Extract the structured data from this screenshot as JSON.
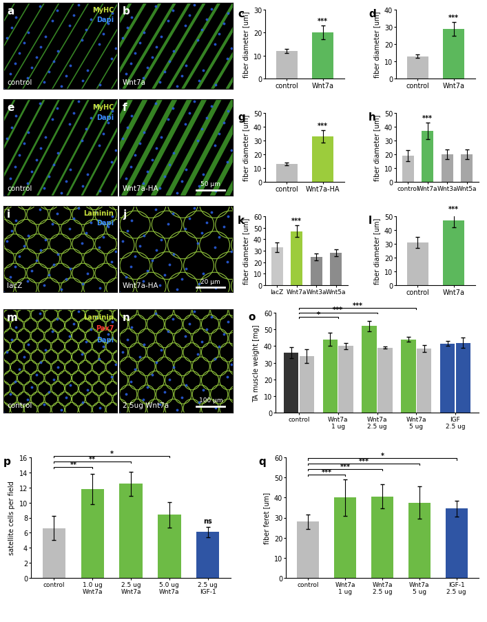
{
  "images": [
    {
      "panel": "a",
      "channels": [
        {
          "name": "MyHC",
          "color": "#c8e03c"
        },
        {
          "name": "Dapi",
          "color": "#3a8cff"
        }
      ],
      "label": "control"
    },
    {
      "panel": "b",
      "label": "Wnt7a"
    },
    {
      "panel": "e",
      "channels": [
        {
          "name": "MyHC",
          "color": "#c8e03c"
        },
        {
          "name": "Dapi",
          "color": "#3a8cff"
        }
      ],
      "label": "control"
    },
    {
      "panel": "f",
      "label": "Wnt7a-HA",
      "scale_bar": "50 μm"
    },
    {
      "panel": "i",
      "channels": [
        {
          "name": "Laminin",
          "color": "#c8e03c"
        },
        {
          "name": "Dapi",
          "color": "#3a8cff"
        }
      ],
      "label": "lacZ"
    },
    {
      "panel": "j",
      "label": "Wnt7a-HA",
      "scale_bar": "20 μm"
    },
    {
      "panel": "m",
      "channels": [
        {
          "name": "Laminin",
          "color": "#c8e03c"
        },
        {
          "name": "Pax7",
          "color": "#ff3b30"
        },
        {
          "name": "Dapi",
          "color": "#3a8cff"
        }
      ],
      "label": "control"
    },
    {
      "panel": "n",
      "label": "2.5ug Wnt7a",
      "scale_bar": "100 μm"
    }
  ],
  "chart_data": [
    {
      "panel": "c",
      "type": "bar",
      "y_label": "fiber diameter [um]",
      "categories": [
        "control",
        "Wnt7a"
      ],
      "values": [
        12,
        20
      ],
      "errors": [
        1,
        3
      ],
      "colors": [
        "#bdbdbd",
        "#5cb85c"
      ],
      "ylim": [
        0,
        30
      ],
      "yticks": [
        0,
        10,
        20,
        30
      ],
      "annotations": [
        null,
        "***"
      ]
    },
    {
      "panel": "d",
      "type": "bar",
      "y_label": "fiber diameter [um]",
      "categories": [
        "control",
        "Wnt7a"
      ],
      "values": [
        13,
        29
      ],
      "errors": [
        1,
        4
      ],
      "colors": [
        "#bdbdbd",
        "#5cb85c"
      ],
      "ylim": [
        0,
        40
      ],
      "yticks": [
        0,
        10,
        20,
        30,
        40
      ],
      "annotations": [
        null,
        "***"
      ]
    },
    {
      "panel": "g",
      "type": "bar",
      "y_label": "fiber diameter [um]",
      "categories": [
        "control",
        "Wnt7a-HA"
      ],
      "values": [
        13,
        33
      ],
      "errors": [
        1,
        4.5
      ],
      "colors": [
        "#bdbdbd",
        "#9ccc3c"
      ],
      "ylim": [
        0,
        50
      ],
      "yticks": [
        0,
        10,
        20,
        30,
        40,
        50
      ],
      "annotations": [
        null,
        "***"
      ]
    },
    {
      "panel": "h",
      "type": "bar",
      "y_label": "fiber diameter [um]",
      "categories": [
        "control",
        "Wnt7a",
        "Wnt3a",
        "Wnt5a"
      ],
      "values": [
        19,
        37,
        20,
        20
      ],
      "errors": [
        4,
        6,
        3.5,
        3.5
      ],
      "colors": [
        "#bdbdbd",
        "#5cb85c",
        "#a6a6a6",
        "#a6a6a6"
      ],
      "ylim": [
        0,
        50
      ],
      "yticks": [
        0,
        10,
        20,
        30,
        40,
        50
      ],
      "annotations": [
        null,
        "***",
        null,
        null
      ]
    },
    {
      "panel": "k",
      "type": "bar",
      "y_label": "fiber diameter [um]",
      "categories": [
        "lacZ",
        "Wnt7a",
        "Wnt3a",
        "Wnt5a"
      ],
      "values": [
        33,
        47,
        24.5,
        28.5
      ],
      "errors": [
        4,
        5,
        3,
        3
      ],
      "colors": [
        "#c8c8c8",
        "#9ccc3c",
        "#8c8c8c",
        "#8c8c8c"
      ],
      "ylim": [
        0,
        60
      ],
      "yticks": [
        0,
        10,
        20,
        30,
        40,
        50,
        60
      ],
      "annotations": [
        null,
        "***",
        null,
        null
      ]
    },
    {
      "panel": "l",
      "type": "bar",
      "y_label": "fiber diameter [um]",
      "categories": [
        "control",
        "Wnt7a"
      ],
      "values": [
        31,
        47
      ],
      "errors": [
        4,
        5
      ],
      "colors": [
        "#bdbdbd",
        "#5cb85c"
      ],
      "ylim": [
        0,
        50
      ],
      "yticks": [
        0,
        10,
        20,
        30,
        40,
        50
      ],
      "annotations": [
        null,
        "***"
      ]
    },
    {
      "panel": "o",
      "type": "bar",
      "y_label": "TA muscle weight [mg]",
      "categories": [
        "control",
        "Wnt7a\n1 ug",
        "Wnt7a\n2.5 ug",
        "Wnt7a\n5 ug",
        "IGF\n2.5 ug"
      ],
      "series": [
        {
          "values": [
            36,
            44,
            52,
            44,
            41.5
          ],
          "errors": [
            3.5,
            4,
            3,
            1.5,
            1.5
          ],
          "colors": [
            "#333333",
            "#6dbb45",
            "#6dbb45",
            "#6dbb45",
            "#2f55a4"
          ]
        },
        {
          "values": [
            34,
            40,
            39,
            38.5,
            42
          ],
          "errors": [
            4,
            2,
            0.7,
            2,
            3
          ],
          "colors": [
            "#bdbdbd",
            "#bdbdbd",
            "#bdbdbd",
            "#bdbdbd",
            "#2f55a4"
          ]
        }
      ],
      "ylim": [
        0,
        60
      ],
      "yticks": [
        0,
        10,
        20,
        30,
        40,
        50,
        60
      ],
      "brackets": [
        {
          "from": "control",
          "to": "Wnt7a\n1 ug",
          "text": "*"
        },
        {
          "from": "control",
          "to": "Wnt7a\n2.5 ug",
          "text": "***"
        },
        {
          "from": "control",
          "to": "Wnt7a\n5 ug",
          "text": "***"
        }
      ]
    },
    {
      "panel": "p",
      "type": "bar",
      "y_label": "satellite cells per field",
      "categories": [
        "control",
        "1.0 ug\nWnt7a",
        "2.5 ug\nWnt7a",
        "5.0 ug\nWnt7a",
        "2.5 ug\nIGF-1"
      ],
      "values": [
        6.6,
        11.8,
        12.5,
        8.4,
        6.1
      ],
      "errors": [
        1.6,
        2,
        1.6,
        1.7,
        0.7
      ],
      "colors": [
        "#bdbdbd",
        "#6dbb45",
        "#6dbb45",
        "#6dbb45",
        "#2f55a4"
      ],
      "ylim": [
        0,
        16
      ],
      "yticks": [
        0,
        2,
        4,
        6,
        8,
        10,
        12,
        14,
        16
      ],
      "annotations": [
        null,
        null,
        null,
        null,
        "ns"
      ],
      "brackets": [
        {
          "from": "control",
          "to": "1.0 ug\nWnt7a",
          "text": "**"
        },
        {
          "from": "control",
          "to": "2.5 ug\nWnt7a",
          "text": "**"
        },
        {
          "from": "control",
          "to": "5.0 ug\nWnt7a",
          "text": "*"
        }
      ]
    },
    {
      "panel": "q",
      "type": "bar",
      "y_label": "fiber feret [um]",
      "categories": [
        "control",
        "Wnt7a\n1 ug",
        "Wnt7a\n2.5 ug",
        "Wnt7a\n5 ug",
        "IGF-1\n2.5 ug"
      ],
      "values": [
        28,
        40,
        40.5,
        37.5,
        34.5
      ],
      "errors": [
        3.5,
        9,
        6,
        8,
        4
      ],
      "colors": [
        "#bdbdbd",
        "#6dbb45",
        "#6dbb45",
        "#6dbb45",
        "#2f55a4"
      ],
      "ylim": [
        0,
        60
      ],
      "yticks": [
        0,
        10,
        20,
        30,
        40,
        50,
        60
      ],
      "brackets": [
        {
          "from": "control",
          "to": "Wnt7a\n1 ug",
          "text": "***"
        },
        {
          "from": "control",
          "to": "Wnt7a\n2.5 ug",
          "text": "***"
        },
        {
          "from": "control",
          "to": "Wnt7a\n5 ug",
          "text": "***"
        },
        {
          "from": "control",
          "to": "IGF-1\n2.5 ug",
          "text": "*"
        }
      ]
    }
  ]
}
